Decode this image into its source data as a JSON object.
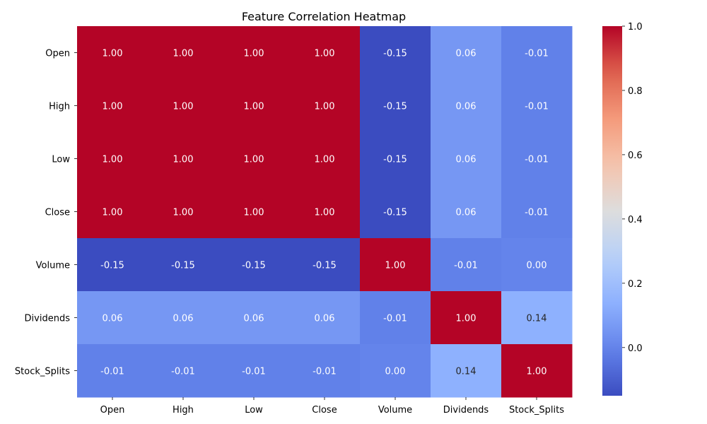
{
  "chart_data": {
    "type": "heatmap",
    "title": "Feature Correlation Heatmap",
    "x_categories": [
      "Open",
      "High",
      "Low",
      "Close",
      "Volume",
      "Dividends",
      "Stock_Splits"
    ],
    "y_categories": [
      "Open",
      "High",
      "Low",
      "Close",
      "Volume",
      "Dividends",
      "Stock_Splits"
    ],
    "values": [
      [
        1.0,
        1.0,
        1.0,
        1.0,
        -0.15,
        0.06,
        -0.01
      ],
      [
        1.0,
        1.0,
        1.0,
        1.0,
        -0.15,
        0.06,
        -0.01
      ],
      [
        1.0,
        1.0,
        1.0,
        1.0,
        -0.15,
        0.06,
        -0.01
      ],
      [
        1.0,
        1.0,
        1.0,
        1.0,
        -0.15,
        0.06,
        -0.01
      ],
      [
        -0.15,
        -0.15,
        -0.15,
        -0.15,
        1.0,
        -0.01,
        0.0
      ],
      [
        0.06,
        0.06,
        0.06,
        0.06,
        -0.01,
        1.0,
        0.14
      ],
      [
        -0.01,
        -0.01,
        -0.01,
        -0.01,
        0.0,
        0.14,
        1.0
      ]
    ],
    "colormap": "coolwarm",
    "vmin": -0.15,
    "vmax": 1.0,
    "colorbar_ticks": [
      "0.0",
      "0.2",
      "0.4",
      "0.6",
      "0.8",
      "1.0"
    ],
    "colorbar_tick_values": [
      0.0,
      0.2,
      0.4,
      0.6,
      0.8,
      1.0
    ],
    "annotation_format": "0.00"
  }
}
